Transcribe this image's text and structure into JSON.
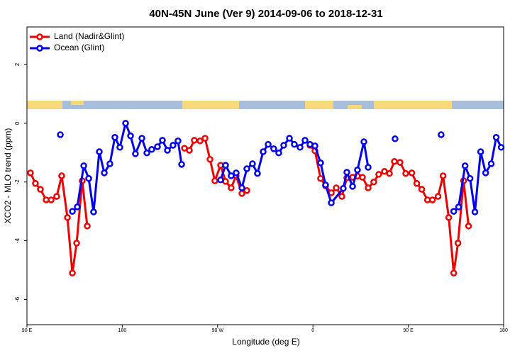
{
  "chart_data": {
    "type": "line",
    "title": "40N-45N June (Ver 9)   2014-09-06 to 2018-12-31",
    "x_label": "Longitude (deg E)",
    "y_label": "XCO2 - MLO trend (ppm)",
    "xlim": [
      90,
      540
    ],
    "xticks": [
      {
        "value": 90,
        "label": "90 E"
      },
      180,
      {
        "value": 270,
        "label": "90 W"
      },
      {
        "value": 360,
        "label": "0"
      },
      {
        "value": 450,
        "label": "90 E"
      },
      {
        "value": 540,
        "label": "180"
      }
    ],
    "ylim": [
      -6.86,
      3.28
    ],
    "yticks": [
      -6,
      -4,
      -2,
      0,
      2
    ],
    "legend": "top-left",
    "series": [
      {
        "name": "Land (Nadir&Glint)",
        "color": "#ee0000",
        "x": [
          93.3,
          98.0,
          102.7,
          108.1,
          112.8,
          118.1,
          122.8,
          128.2,
          132.9,
          136.9,
          142.2,
          146.9,
          null,
          238.7,
          243.3,
          248.0,
          253.4,
          258.1,
          262.8,
          267.4,
          272.8,
          277.5,
          282.8,
          287.5,
          292.9,
          297.6,
          null,
          357.2,
          361.9,
          367.2,
          371.9,
          377.3,
          382.0,
          387.3,
          392.0,
          397.4,
          402.0,
          406.7,
          412.1,
          417.4,
          422.1,
          427.5,
          432.2,
          436.9,
          442.2,
          447.6,
          453.3,
          458.0,
          462.7,
          468.1,
          472.8,
          478.1,
          482.8,
          488.2,
          492.9,
          496.9,
          502.2,
          506.9
        ],
        "values": [
          -1.69,
          -2.05,
          -2.25,
          -2.61,
          -2.61,
          -2.49,
          -1.79,
          -3.21,
          -5.1,
          -4.08,
          -1.96,
          -3.5,
          null,
          -0.85,
          -0.92,
          -0.58,
          -0.6,
          -0.51,
          -1.23,
          -1.96,
          -1.43,
          -1.98,
          -2.2,
          -1.79,
          -2.39,
          -2.29,
          null,
          -0.75,
          -0.94,
          -1.88,
          -2.13,
          -2.37,
          -2.2,
          -2.49,
          -1.86,
          -1.84,
          -1.8,
          -1.84,
          -2.2,
          -2.0,
          -1.74,
          -1.64,
          -1.71,
          -1.3,
          -1.33,
          -1.71,
          -1.69,
          -2.05,
          -2.25,
          -2.61,
          -2.61,
          -2.49,
          -1.79,
          -3.21,
          -5.1,
          -4.08,
          -1.96,
          -3.5
        ]
      },
      {
        "name": "Ocean (Glint)",
        "color": "#0000ee",
        "x": [
          121.5,
          null,
          132.9,
          137.5,
          143.6,
          148.3,
          152.9,
          158.3,
          163.0,
          168.3,
          173.0,
          177.7,
          183.1,
          187.8,
          192.4,
          198.5,
          203.2,
          207.8,
          213.2,
          217.9,
          222.6,
          227.9,
          232.6,
          236.0,
          null,
          272.8,
          277.5,
          282.8,
          287.5,
          292.9,
          297.6,
          302.9,
          307.6,
          313.0,
          317.7,
          323.0,
          327.7,
          332.4,
          337.8,
          342.4,
          347.8,
          352.5,
          357.2,
          361.9,
          367.2,
          371.9,
          377.3,
          388.6,
          392.0,
          397.4,
          402.0,
          408.1,
          412.1,
          null,
          437.5,
          null,
          481.0,
          null,
          492.9,
          497.5,
          503.6,
          508.3,
          512.9,
          518.3,
          523.0,
          528.3,
          533.0,
          537.7
        ],
        "values": [
          -0.39,
          null,
          -3.0,
          -2.85,
          -1.45,
          -1.88,
          -3.02,
          -0.97,
          -1.69,
          -1.38,
          -0.48,
          -0.82,
          0.0,
          -0.43,
          -1.04,
          -0.51,
          -1.01,
          -0.89,
          -0.8,
          -0.58,
          -0.92,
          -0.75,
          -0.6,
          -1.4,
          null,
          -1.93,
          -1.43,
          -1.79,
          -1.69,
          -2.2,
          -1.55,
          -1.38,
          -1.71,
          -0.97,
          -0.72,
          -0.87,
          -1.01,
          -0.75,
          -0.51,
          -0.72,
          -0.82,
          -0.58,
          -0.72,
          -0.77,
          -1.35,
          -2.1,
          -2.71,
          -2.22,
          -1.67,
          -2.15,
          -1.59,
          -0.63,
          -1.5,
          null,
          -0.53,
          null,
          -0.39,
          null,
          -3.0,
          -2.85,
          -1.45,
          -1.88,
          -3.02,
          -0.97,
          -1.69,
          -1.38,
          -0.48,
          -0.82
        ]
      }
    ]
  }
}
